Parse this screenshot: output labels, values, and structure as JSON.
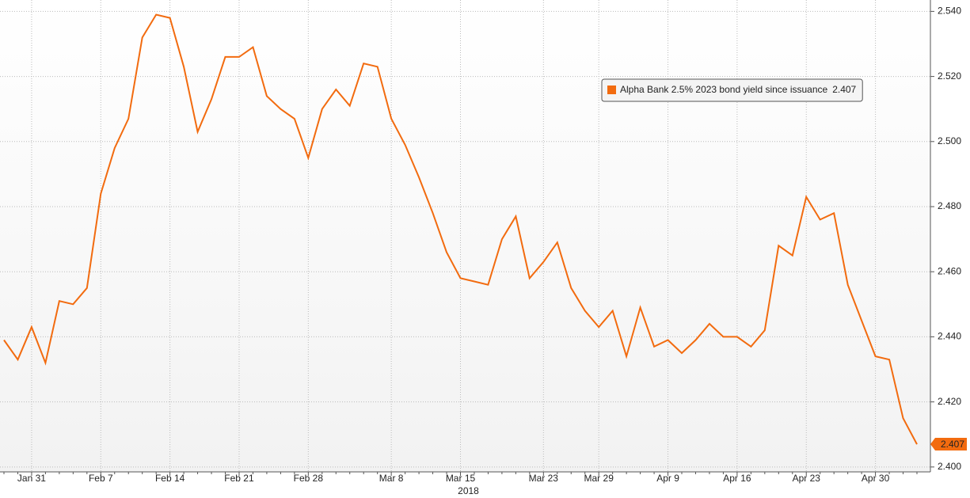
{
  "chart_data": {
    "type": "line",
    "year_label": "2018",
    "categories": [
      null,
      null,
      "Jan 31",
      null,
      null,
      null,
      null,
      "Feb 7",
      null,
      null,
      null,
      null,
      "Feb 14",
      null,
      null,
      null,
      null,
      "Feb 21",
      null,
      null,
      null,
      null,
      "Feb 28",
      null,
      null,
      null,
      null,
      null,
      "Mar 8",
      null,
      null,
      null,
      null,
      "Mar 15",
      null,
      null,
      null,
      null,
      null,
      "Mar 23",
      null,
      null,
      null,
      "Mar 29",
      null,
      null,
      null,
      null,
      "Apr 9",
      null,
      null,
      null,
      null,
      "Apr 16",
      null,
      null,
      null,
      null,
      "Apr 23",
      null,
      null,
      null,
      null,
      "Apr 30",
      null,
      null,
      null
    ],
    "series": [
      {
        "name": "Alpha Bank 2.5% 2023 bond yield since issuance",
        "color": "#f26b0f",
        "values": [
          2.439,
          2.433,
          2.443,
          2.432,
          2.451,
          2.45,
          2.455,
          2.484,
          2.498,
          2.507,
          2.532,
          2.539,
          2.538,
          2.523,
          2.503,
          2.513,
          2.526,
          2.526,
          2.529,
          2.514,
          2.51,
          2.507,
          2.495,
          2.51,
          2.516,
          2.511,
          2.524,
          2.523,
          2.507,
          2.499,
          2.489,
          2.478,
          2.466,
          2.458,
          2.457,
          2.456,
          2.47,
          2.477,
          2.458,
          2.463,
          2.469,
          2.455,
          2.448,
          2.443,
          2.448,
          2.434,
          2.449,
          2.437,
          2.439,
          2.435,
          2.439,
          2.444,
          2.44,
          2.44,
          2.437,
          2.442,
          2.468,
          2.465,
          2.483,
          2.476,
          2.478,
          2.456,
          2.445,
          2.434,
          2.433,
          2.415,
          2.407
        ]
      }
    ],
    "ylim": [
      2.3985,
      2.5435
    ],
    "yticks": [
      {
        "value": 2.4,
        "label": "2.400"
      },
      {
        "value": 2.42,
        "label": "2.420"
      },
      {
        "value": 2.44,
        "label": "2.440"
      },
      {
        "value": 2.46,
        "label": "2.460"
      },
      {
        "value": 2.48,
        "label": "2.480"
      },
      {
        "value": 2.5,
        "label": "2.500"
      },
      {
        "value": 2.52,
        "label": "2.520"
      },
      {
        "value": 2.54,
        "label": "2.540"
      }
    ],
    "grid": true
  }
}
